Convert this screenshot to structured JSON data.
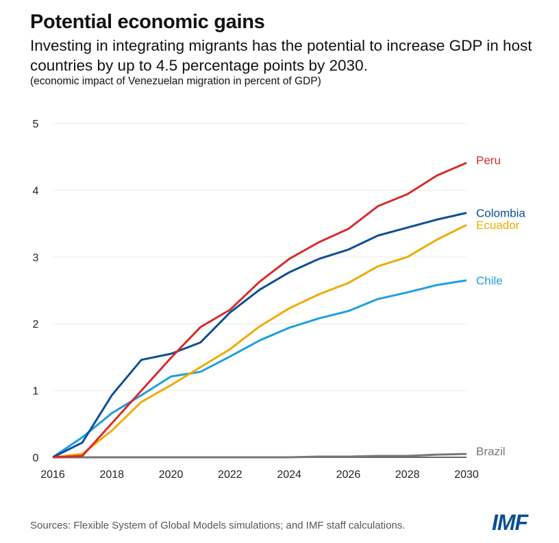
{
  "header": {
    "title": "Potential economic gains",
    "subtitle": "Investing in integrating migrants has the potential to increase GDP in host countries by up to 4.5 percentage points by 2030.",
    "note": "(economic impact of Venezuelan migration in percent of GDP)"
  },
  "footer": {
    "source": "Sources: Flexible System of Global Models simulations; and IMF staff calculations.",
    "logo": "IMF"
  },
  "chart_data": {
    "type": "line",
    "title": "Potential economic gains",
    "xlabel": "",
    "ylabel": "",
    "xlim": [
      2016,
      2030
    ],
    "ylim": [
      0,
      5
    ],
    "x_ticks": [
      "2016",
      "2018",
      "2020",
      "2022",
      "2024",
      "2026",
      "2028",
      "2030"
    ],
    "y_ticks": [
      "0",
      "1",
      "2",
      "3",
      "4",
      "5"
    ],
    "grid": true,
    "legend": "direct labels at right end of lines",
    "x": [
      2016,
      2017,
      2018,
      2019,
      2020,
      2021,
      2022,
      2023,
      2024,
      2025,
      2026,
      2027,
      2028,
      2029,
      2030
    ],
    "series": [
      {
        "name": "Peru",
        "color": "#d62b2b",
        "values": [
          0,
          0.02,
          0.51,
          1.0,
          1.49,
          1.95,
          2.21,
          2.63,
          2.97,
          3.22,
          3.42,
          3.76,
          3.94,
          4.22,
          4.41
        ]
      },
      {
        "name": "Colombia",
        "color": "#0b4f95",
        "values": [
          0,
          0.22,
          0.93,
          1.46,
          1.55,
          1.72,
          2.17,
          2.51,
          2.77,
          2.97,
          3.11,
          3.32,
          3.44,
          3.56,
          3.66
        ]
      },
      {
        "name": "Ecuador",
        "color": "#f0ab00",
        "values": [
          0,
          0.05,
          0.4,
          0.83,
          1.08,
          1.35,
          1.62,
          1.96,
          2.23,
          2.44,
          2.61,
          2.86,
          3.0,
          3.26,
          3.48
        ]
      },
      {
        "name": "Chile",
        "color": "#1ca0dd",
        "values": [
          0,
          0.3,
          0.66,
          0.93,
          1.21,
          1.28,
          1.51,
          1.75,
          1.94,
          2.08,
          2.19,
          2.37,
          2.47,
          2.58,
          2.65
        ]
      },
      {
        "name": "Brazil",
        "color": "#777777",
        "values": [
          0,
          0,
          0,
          0,
          0,
          0,
          0,
          0,
          0,
          0.01,
          0.01,
          0.02,
          0.02,
          0.04,
          0.05
        ]
      }
    ]
  }
}
